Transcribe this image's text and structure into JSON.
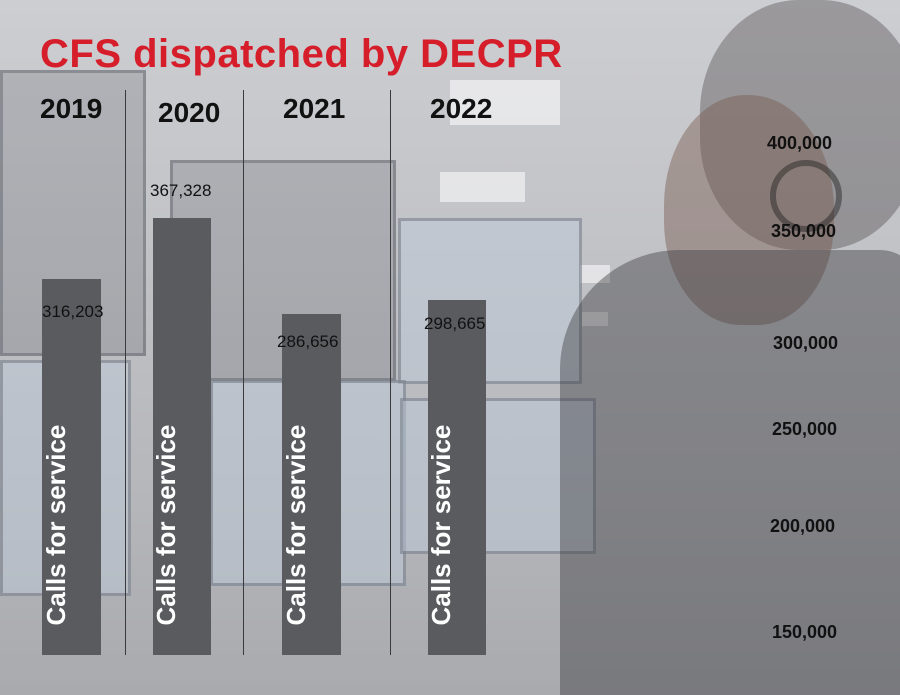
{
  "title": "CFS dispatched by DECPR",
  "colors": {
    "title": "#d61e2b",
    "bar": "#5a5b5f",
    "bar_text": "#ffffff"
  },
  "chart_data": {
    "type": "bar",
    "title": "CFS dispatched by DECPR",
    "categories": [
      "2019",
      "2020",
      "2021",
      "2022"
    ],
    "values": [
      316203,
      367328,
      286656,
      298665
    ],
    "value_labels": [
      "316,203",
      "367,328",
      "286,656",
      "298,665"
    ],
    "bar_label": "Calls for service",
    "y_ticks": [
      "400,000",
      "350,000",
      "300,000",
      "250,000",
      "200,000",
      "150,000"
    ],
    "ylim": [
      150000,
      400000
    ],
    "grid": false,
    "legend": "none"
  }
}
